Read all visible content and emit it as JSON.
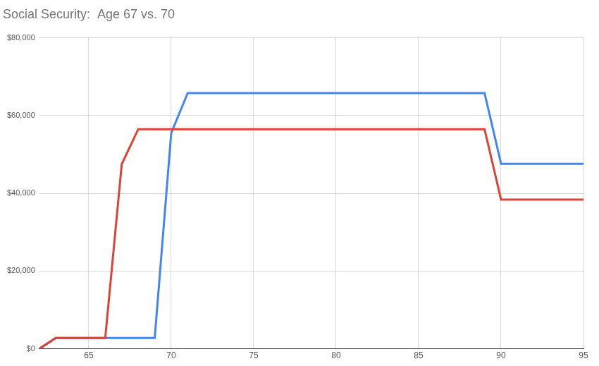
{
  "chart_data": {
    "type": "line",
    "title": "Social Security:  Age 67 vs. 70",
    "x": [
      62,
      63,
      64,
      65,
      66,
      67,
      68,
      69,
      70,
      71,
      72,
      73,
      74,
      75,
      76,
      77,
      78,
      79,
      80,
      81,
      82,
      83,
      84,
      85,
      86,
      87,
      88,
      89,
      90,
      91,
      92,
      93,
      94,
      95
    ],
    "series": [
      {
        "color": "#db4437",
        "values": [
          0,
          2800,
          2800,
          2800,
          2800,
          47500,
          56500,
          56500,
          56500,
          56500,
          56500,
          56500,
          56500,
          56500,
          56500,
          56500,
          56500,
          56500,
          56500,
          56500,
          56500,
          56500,
          56500,
          56500,
          56500,
          56500,
          56500,
          56500,
          38400,
          38400,
          38400,
          38400,
          38400,
          38400
        ]
      },
      {
        "color": "#4285f4",
        "values": [
          0,
          2800,
          2800,
          2800,
          2800,
          2800,
          2800,
          2800,
          55500,
          65800,
          65800,
          65800,
          65800,
          65800,
          65800,
          65800,
          65800,
          65800,
          65800,
          65800,
          65800,
          65800,
          65800,
          65800,
          65800,
          65800,
          65800,
          65800,
          47600,
          47600,
          47600,
          47600,
          47600,
          47600
        ]
      }
    ],
    "xlim": [
      62,
      95
    ],
    "xticks": [
      65,
      70,
      75,
      80,
      85,
      90,
      95
    ],
    "ylim": [
      0,
      80000
    ],
    "yticks": [
      {
        "value": 0,
        "label": "$0"
      },
      {
        "value": 20000,
        "label": "$20,000"
      },
      {
        "value": 40000,
        "label": "$40,000"
      },
      {
        "value": 60000,
        "label": "$60,000"
      },
      {
        "value": 80000,
        "label": "$80,000"
      }
    ],
    "grid": true
  }
}
